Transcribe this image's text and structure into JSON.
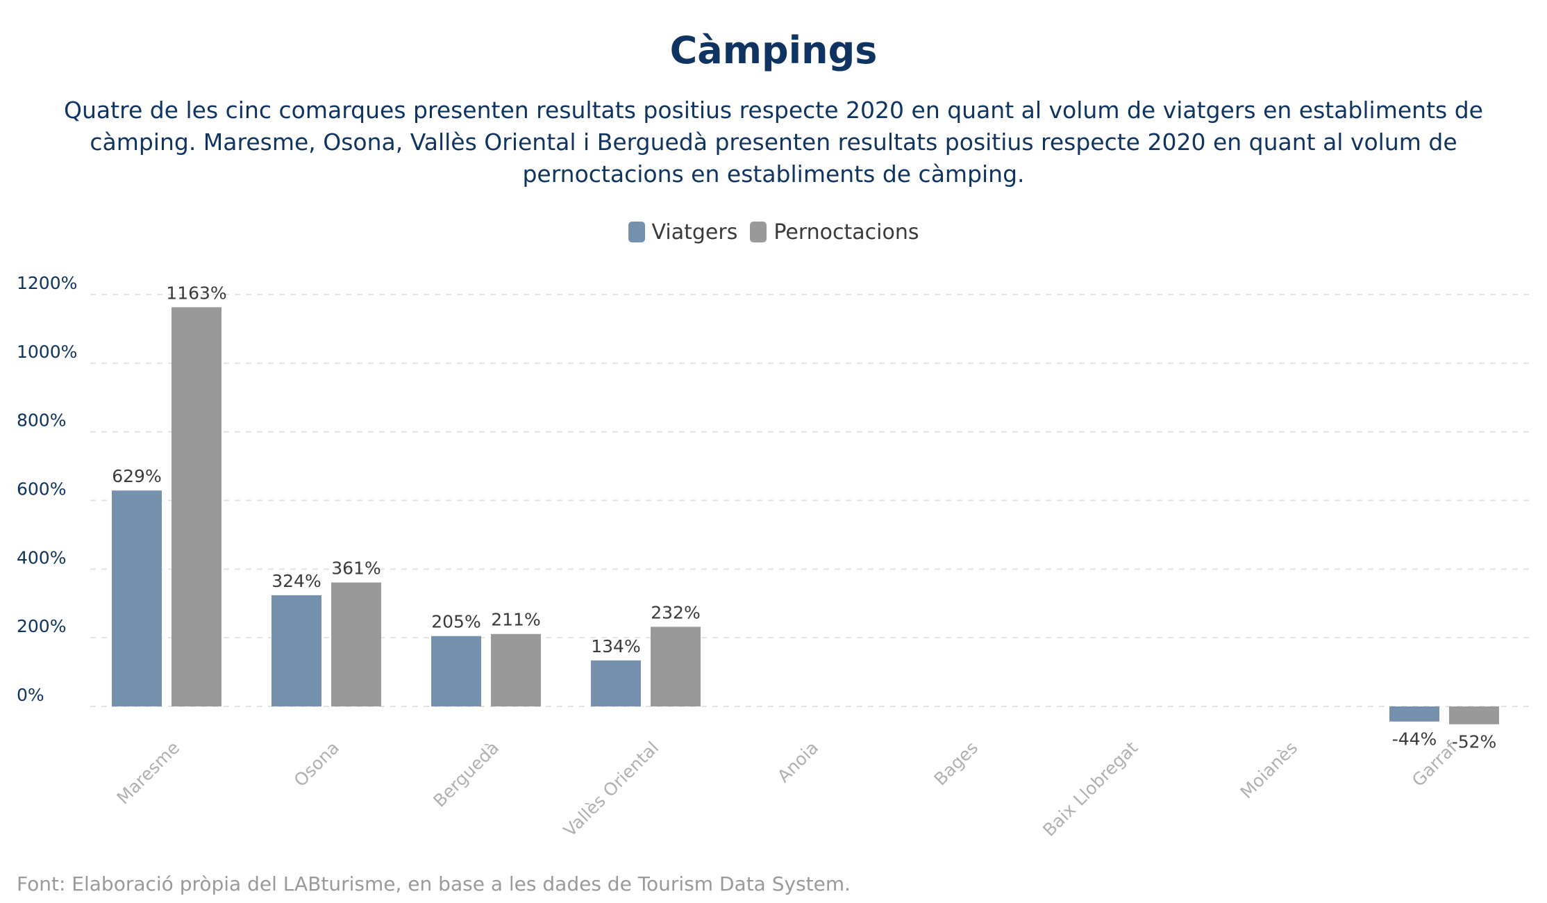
{
  "chart_data": {
    "type": "bar",
    "title": "Càmpings",
    "subtitle": "Quatre de les cinc comarques presenten resultats positius respecte 2020 en quant al volum de viatgers en establiments de càmping. Maresme, Osona, Vallès Oriental i Berguedà presenten resultats positius respecte 2020 en quant al volum de pernoctacions en establiments de càmping.",
    "categories": [
      "Maresme",
      "Osona",
      "Berguedà",
      "Vallès Oriental",
      "Anoia",
      "Bages",
      "Baix Llobregat",
      "Moianès",
      "Garraf"
    ],
    "series": [
      {
        "name": "Viatgers",
        "color": "#7591ad",
        "values": [
          629,
          324,
          205,
          134,
          null,
          null,
          null,
          null,
          -44
        ],
        "labels": [
          "629%",
          "324%",
          "205%",
          "134%",
          "",
          "",
          "",
          "",
          "-44%"
        ]
      },
      {
        "name": "Pernoctacions",
        "color": "#999999",
        "values": [
          1163,
          361,
          211,
          232,
          null,
          null,
          null,
          null,
          -52
        ],
        "labels": [
          "1163%",
          "361%",
          "211%",
          "232%",
          "",
          "",
          "",
          "",
          "-52%"
        ]
      }
    ],
    "y_ticks": [
      0,
      200,
      400,
      600,
      800,
      1000,
      1200
    ],
    "y_tick_labels": [
      "0%",
      "200%",
      "400%",
      "600%",
      "800%",
      "1000%",
      "1200%"
    ],
    "ylim": [
      -60,
      1200
    ],
    "xlabel": "",
    "ylabel": "",
    "grid": true,
    "legend_position": "top-center"
  },
  "source": "Font: Elaboració pròpia del LABturisme, en base a les dades de Tourism Data System."
}
